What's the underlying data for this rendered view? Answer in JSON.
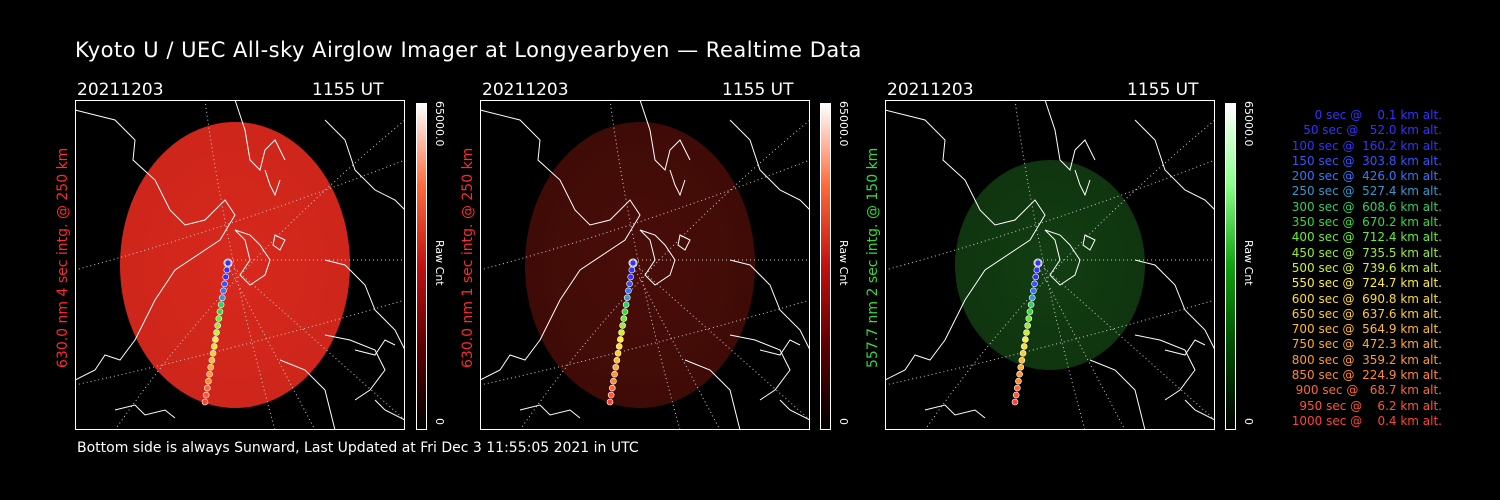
{
  "title": "Kyoto U / UEC All-sky Airglow Imager at Longyearbyen — Realtime Data",
  "footer": "Bottom side is always Sunward, Last Updated at Fri Dec  3 11:55:05 2021 in UTC",
  "panels": [
    {
      "date": "20211203",
      "time": "1155 UT",
      "label": "630.0 nm  4 sec intg. @ 250 km",
      "label_color": "#ff2a2a",
      "cbar_max": "65000.0",
      "cbar_unit": "Raw Cnt",
      "cbar_min": "0",
      "glow_color": "#d8281c",
      "glow_level": "bright"
    },
    {
      "date": "20211203",
      "time": "1155 UT",
      "label": "630.0 nm  1 sec intg. @ 250 km",
      "label_color": "#ff2a2a",
      "cbar_max": "65000.0",
      "cbar_unit": "Raw Cnt",
      "cbar_min": "0",
      "glow_color": "#4a0d08",
      "glow_level": "dim"
    },
    {
      "date": "20211203",
      "time": "1155 UT",
      "label": "557.7 nm  2 sec intg. @ 150 km",
      "label_color": "#33dd33",
      "cbar_max": "65000.0",
      "cbar_unit": "Raw Cnt",
      "cbar_min": "0",
      "glow_color": "#123e12",
      "glow_level": "dim"
    }
  ],
  "legend": [
    {
      "text": "   0 sec @    0.1 km alt.",
      "color": "#3333ff"
    },
    {
      "text": "  50 sec @   52.0 km alt.",
      "color": "#3333ff"
    },
    {
      "text": " 100 sec @  160.2 km alt.",
      "color": "#3333ff"
    },
    {
      "text": " 150 sec @  303.8 km alt.",
      "color": "#3355ff"
    },
    {
      "text": " 200 sec @  426.0 km alt.",
      "color": "#3377ff"
    },
    {
      "text": " 250 sec @  527.4 km alt.",
      "color": "#3399cc"
    },
    {
      "text": " 300 sec @  608.6 km alt.",
      "color": "#33cc66"
    },
    {
      "text": " 350 sec @  670.2 km alt.",
      "color": "#33dd33"
    },
    {
      "text": " 400 sec @  712.4 km alt.",
      "color": "#66ee33"
    },
    {
      "text": " 450 sec @  735.5 km alt.",
      "color": "#99ee33"
    },
    {
      "text": " 500 sec @  739.6 km alt.",
      "color": "#ccee33"
    },
    {
      "text": " 550 sec @  724.7 km alt.",
      "color": "#ffee33"
    },
    {
      "text": " 600 sec @  690.8 km alt.",
      "color": "#ffdd33"
    },
    {
      "text": " 650 sec @  637.6 km alt.",
      "color": "#ffcc33"
    },
    {
      "text": " 700 sec @  564.9 km alt.",
      "color": "#ffbb33"
    },
    {
      "text": " 750 sec @  472.3 km alt.",
      "color": "#ffaa33"
    },
    {
      "text": " 800 sec @  359.2 km alt.",
      "color": "#ff9933"
    },
    {
      "text": " 850 sec @  224.9 km alt.",
      "color": "#ff8833"
    },
    {
      "text": " 900 sec @   68.7 km alt.",
      "color": "#ff6633"
    },
    {
      "text": " 950 sec @    6.2 km alt.",
      "color": "#ff5533"
    },
    {
      "text": "1000 sec @    0.4 km alt.",
      "color": "#ff4433"
    }
  ]
}
